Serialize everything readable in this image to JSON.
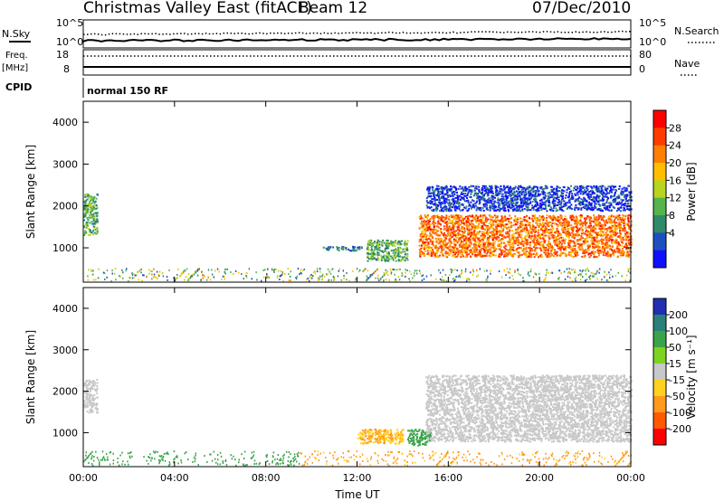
{
  "header": {
    "title": "Christmas Valley East (fitACF)",
    "beam": "Beam 12",
    "date": "07/Dec/2010"
  },
  "top_panels": {
    "nsky_label": "N.Sky",
    "nsky_tick_top": "10^5",
    "nsky_tick_bottom": "10^0",
    "nsearch_label": "N.Search",
    "freq_label": "Freq.",
    "freq_unit": "[MHz]",
    "freq_tick_top": "18",
    "freq_tick_bottom": "8",
    "nave_label": "Nave",
    "nave_tick_top": "80",
    "nave_tick_bottom": "0",
    "cpid_label": "CPID",
    "cpid_value": "normal 150 RF"
  },
  "power_panel": {
    "ylabel": "Slant Range [km]",
    "cbar_label": "Power [dB]",
    "cbar_ticks": [
      "28",
      "24",
      "20",
      "16",
      "12",
      "8",
      "4"
    ],
    "cbar_colors": [
      "#ff0000",
      "#ff3c00",
      "#ff7f00",
      "#ffbf00",
      "#b8d320",
      "#55b44c",
      "#2f8a6a",
      "#1f4fbf",
      "#1010ff"
    ]
  },
  "velocity_panel": {
    "ylabel": "Slant Range [km]",
    "cbar_label": "Velocity [m s⁻¹]",
    "cbar_ticks": [
      "200",
      "100",
      "50",
      "15",
      "-15",
      "-50",
      "-100",
      "-200"
    ],
    "cbar_colors": [
      "#1f2fb0",
      "#2a7f7a",
      "#3aa34a",
      "#7ed321",
      "#c8c8c8",
      "#ffd21f",
      "#ff9a1a",
      "#ff5a00",
      "#ff0000"
    ]
  },
  "chart_data": {
    "type": "heatmap",
    "xlabel": "Time UT",
    "x_ticks": [
      "00:00",
      "04:00",
      "08:00",
      "12:00",
      "16:00",
      "20:00",
      "00:00"
    ],
    "y_ticks": [
      "1000",
      "2000",
      "3000",
      "4000"
    ],
    "ylim": [
      180,
      4500
    ],
    "xlim_hours": [
      0,
      24
    ],
    "power_regions": [
      {
        "t_start": 0.0,
        "t_end": 0.6,
        "range_low": 1300,
        "range_high": 2300,
        "power_db": 12
      },
      {
        "t_start": 10.5,
        "t_end": 12.2,
        "range_low": 950,
        "range_high": 1050,
        "power_db": 8
      },
      {
        "t_start": 12.4,
        "t_end": 14.2,
        "range_low": 700,
        "range_high": 1200,
        "power_db": 12
      },
      {
        "t_start": 14.7,
        "t_end": 24.0,
        "range_low": 800,
        "range_high": 1800,
        "power_db": 24
      },
      {
        "t_start": 15.0,
        "t_end": 24.0,
        "range_low": 1900,
        "range_high": 2500,
        "power_db": 4
      }
    ],
    "velocity_regions": [
      {
        "t_start": 0.0,
        "t_end": 0.6,
        "range_low": 1500,
        "range_high": 2300,
        "velocity": 0
      },
      {
        "t_start": 12.0,
        "t_end": 14.0,
        "range_low": 750,
        "range_high": 1100,
        "velocity": -50
      },
      {
        "t_start": 14.2,
        "t_end": 15.2,
        "range_low": 700,
        "range_high": 1100,
        "velocity": 50
      },
      {
        "t_start": 15.0,
        "t_end": 24.0,
        "range_low": 800,
        "range_high": 2400,
        "velocity": 0
      }
    ]
  }
}
